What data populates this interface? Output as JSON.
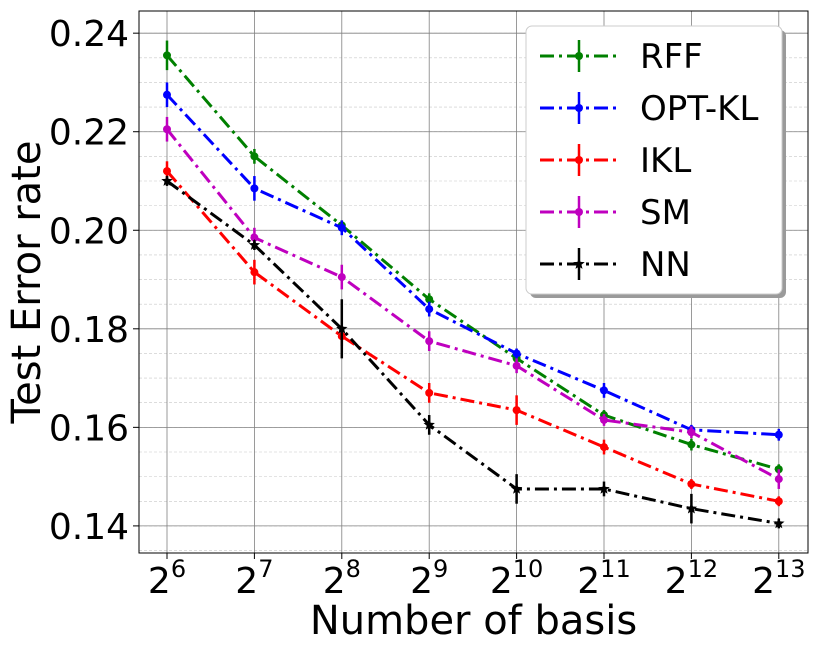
{
  "chart_data": {
    "type": "line",
    "title": "",
    "xlabel": "Number of basis",
    "ylabel": "Test Error rate",
    "x_base": "2",
    "x_exponents": [
      "6",
      "7",
      "8",
      "9",
      "10",
      "11",
      "12",
      "13"
    ],
    "y_ticks": [
      "0.14",
      "0.16",
      "0.18",
      "0.20",
      "0.22",
      "0.24"
    ],
    "ylim": [
      0.1345,
      0.2445
    ],
    "grid": true,
    "legend_position": "top-right",
    "series": [
      {
        "name": "RFF",
        "color": "#008000",
        "marker": "circle",
        "values": [
          0.2355,
          0.215,
          0.201,
          0.186,
          0.174,
          0.1625,
          0.1565,
          0.1515
        ],
        "errors": [
          0.003,
          0.0015,
          0.001,
          0.0012,
          0.001,
          0.001,
          0.0012,
          0.001
        ]
      },
      {
        "name": "OPT-KL",
        "color": "#0000ff",
        "marker": "circle",
        "values": [
          0.2275,
          0.2085,
          0.2005,
          0.184,
          0.175,
          0.1675,
          0.1595,
          0.1585
        ],
        "errors": [
          0.0025,
          0.0025,
          0.0015,
          0.0015,
          0.001,
          0.0015,
          0.001,
          0.0012
        ]
      },
      {
        "name": "IKL",
        "color": "#ff0000",
        "marker": "circle",
        "values": [
          0.212,
          0.1915,
          0.1785,
          0.167,
          0.1635,
          0.156,
          0.1485,
          0.145
        ],
        "errors": [
          0.002,
          0.0025,
          0.002,
          0.002,
          0.003,
          0.0015,
          0.001,
          0.001
        ]
      },
      {
        "name": "SM",
        "color": "#bf00bf",
        "marker": "circle",
        "values": [
          0.2205,
          0.1985,
          0.1905,
          0.1775,
          0.1725,
          0.1615,
          0.159,
          0.1495
        ],
        "errors": [
          0.0025,
          0.002,
          0.0025,
          0.002,
          0.0015,
          0.0012,
          0.0012,
          0.002
        ]
      },
      {
        "name": "NN",
        "color": "#000000",
        "marker": "star",
        "values": [
          0.21,
          0.197,
          0.18,
          0.1605,
          0.1475,
          0.1475,
          0.1435,
          0.1405
        ],
        "errors": [
          0.001,
          0.001,
          0.006,
          0.002,
          0.003,
          0.0015,
          0.003,
          0.001
        ]
      }
    ]
  }
}
